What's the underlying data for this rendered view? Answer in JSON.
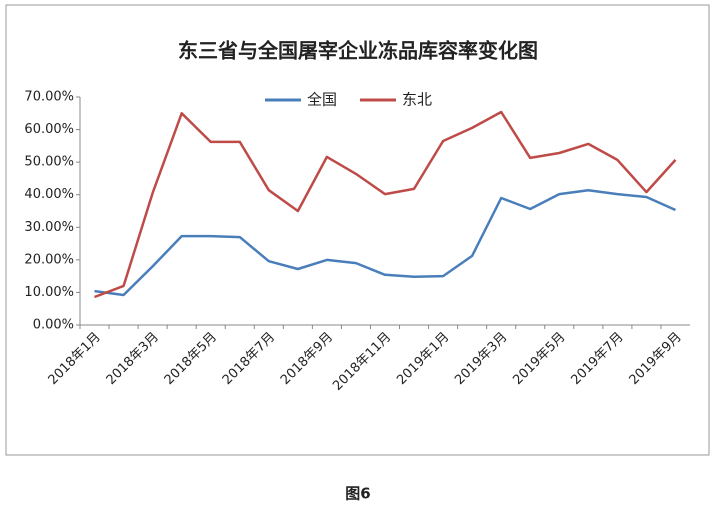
{
  "chart_data": {
    "type": "line",
    "title": "东三省与全国屠宰企业冻品库容率变化图",
    "caption": "图6",
    "categories": [
      "2018年1月",
      null,
      "2018年3月",
      null,
      "2018年5月",
      null,
      "2018年7月",
      null,
      "2018年9月",
      null,
      "2018年11月",
      null,
      "2019年1月",
      null,
      "2019年3月",
      null,
      "2019年5月",
      null,
      "2019年7月",
      null,
      "2019年9月"
    ],
    "series": [
      {
        "name": "全国",
        "color": "#4a7ebb",
        "values": [
          10.4,
          9.2,
          18,
          27.3,
          27.3,
          27,
          19.6,
          17.2,
          20,
          19,
          15.4,
          14.8,
          15,
          21.2,
          39,
          35.6,
          40.2,
          41.4,
          40.2,
          39.3,
          35.3
        ]
      },
      {
        "name": "东北",
        "color": "#be4b48",
        "values": [
          8.6,
          12,
          40.5,
          65,
          56.2,
          56.2,
          41.4,
          35,
          51.6,
          46.4,
          40.2,
          41.8,
          56.5,
          60.5,
          65.4,
          51.3,
          52.8,
          55.6,
          50.7,
          40.8,
          50.7
        ]
      }
    ],
    "ylim": [
      0,
      70
    ],
    "yticks": [
      {
        "value": 0,
        "label": "0.00%"
      },
      {
        "value": 10,
        "label": "10.00%"
      },
      {
        "value": 20,
        "label": "20.00%"
      },
      {
        "value": 30,
        "label": "30.00%"
      },
      {
        "value": 40,
        "label": "40.00%"
      },
      {
        "value": 50,
        "label": "50.00%"
      },
      {
        "value": 60,
        "label": "60.00%"
      },
      {
        "value": 70,
        "label": "70.00%"
      }
    ],
    "grid": false,
    "legend": "top"
  }
}
